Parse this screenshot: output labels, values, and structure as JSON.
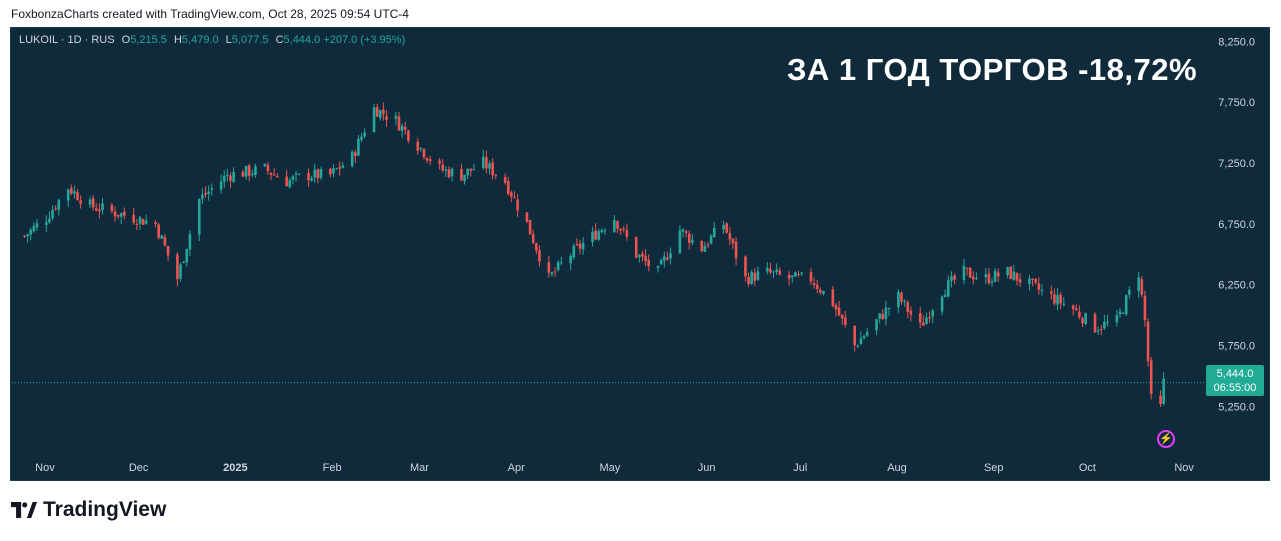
{
  "caption": "FoxbonzaCharts created with TradingView.com, Oct 28, 2025 09:54 UTC-4",
  "legend": {
    "symbol": "LUKOIL · 1D · RUS",
    "o_label": "O",
    "o_value": "5,215.5",
    "h_label": "H",
    "h_value": "5,479.0",
    "l_label": "L",
    "l_value": "5,077.5",
    "c_label": "C",
    "c_value": "5,444.0",
    "change": "+207.0 (+3.95%)"
  },
  "headline": "ЗА 1 ГОД ТОРГОВ -18,72%",
  "price_tag": {
    "price": "5,444.0",
    "timer": "06:55:00"
  },
  "brand": {
    "name": "TradingView"
  },
  "colors": {
    "background": "#0e2a3b",
    "up": "#26a69a",
    "down": "#ef5350",
    "tag": "#22ab94"
  },
  "chart_data": {
    "type": "candlestick",
    "y_ticks": [
      "8,250.0",
      "7,750.0",
      "7,250.0",
      "6,750.0",
      "6,250.0",
      "5,750.0",
      "5,250.0"
    ],
    "y_tick_values": [
      8250,
      7750,
      7250,
      6750,
      6250,
      5750,
      5250
    ],
    "ylim": [
      4850,
      8360
    ],
    "x_ticks": [
      "Nov",
      "Dec",
      "2025",
      "Feb",
      "Mar",
      "Apr",
      "May",
      "Jun",
      "Jul",
      "Aug",
      "Sep",
      "Oct",
      "Nov"
    ],
    "last_price": 5444,
    "series": [
      {
        "d": "2024-10-28",
        "c": 6650
      },
      {
        "d": "2024-11-04",
        "c": 6800
      },
      {
        "d": "2024-11-11",
        "c": 7050
      },
      {
        "d": "2024-11-18",
        "c": 6900
      },
      {
        "d": "2024-11-25",
        "c": 6850
      },
      {
        "d": "2024-12-02",
        "c": 6800
      },
      {
        "d": "2024-12-09",
        "c": 6750
      },
      {
        "d": "2024-12-16",
        "c": 6300
      },
      {
        "d": "2024-12-23",
        "c": 6950
      },
      {
        "d": "2025-01-01",
        "c": 7150
      },
      {
        "d": "2025-01-13",
        "c": 7200
      },
      {
        "d": "2025-01-20",
        "c": 7100
      },
      {
        "d": "2025-01-27",
        "c": 7150
      },
      {
        "d": "2025-02-03",
        "c": 7150
      },
      {
        "d": "2025-02-10",
        "c": 7300
      },
      {
        "d": "2025-02-17",
        "c": 7700
      },
      {
        "d": "2025-02-24",
        "c": 7600
      },
      {
        "d": "2025-03-03",
        "c": 7400
      },
      {
        "d": "2025-03-10",
        "c": 7200
      },
      {
        "d": "2025-03-17",
        "c": 7150
      },
      {
        "d": "2025-03-24",
        "c": 7250
      },
      {
        "d": "2025-03-31",
        "c": 7100
      },
      {
        "d": "2025-04-07",
        "c": 6750
      },
      {
        "d": "2025-04-14",
        "c": 6300
      },
      {
        "d": "2025-04-21",
        "c": 6500
      },
      {
        "d": "2025-04-28",
        "c": 6650
      },
      {
        "d": "2025-05-05",
        "c": 6800
      },
      {
        "d": "2025-05-12",
        "c": 6500
      },
      {
        "d": "2025-05-19",
        "c": 6350
      },
      {
        "d": "2025-05-26",
        "c": 6700
      },
      {
        "d": "2025-06-02",
        "c": 6550
      },
      {
        "d": "2025-06-09",
        "c": 6750
      },
      {
        "d": "2025-06-16",
        "c": 6300
      },
      {
        "d": "2025-06-23",
        "c": 6350
      },
      {
        "d": "2025-06-30",
        "c": 6300
      },
      {
        "d": "2025-07-07",
        "c": 6300
      },
      {
        "d": "2025-07-14",
        "c": 6100
      },
      {
        "d": "2025-07-21",
        "c": 5750
      },
      {
        "d": "2025-07-28",
        "c": 5950
      },
      {
        "d": "2025-08-04",
        "c": 6150
      },
      {
        "d": "2025-08-11",
        "c": 5900
      },
      {
        "d": "2025-08-18",
        "c": 6200
      },
      {
        "d": "2025-08-25",
        "c": 6350
      },
      {
        "d": "2025-09-01",
        "c": 6300
      },
      {
        "d": "2025-09-08",
        "c": 6350
      },
      {
        "d": "2025-09-15",
        "c": 6250
      },
      {
        "d": "2025-09-22",
        "c": 6150
      },
      {
        "d": "2025-09-29",
        "c": 6050
      },
      {
        "d": "2025-10-06",
        "c": 5900
      },
      {
        "d": "2025-10-13",
        "c": 5950
      },
      {
        "d": "2025-10-20",
        "c": 6350
      },
      {
        "d": "2025-10-22",
        "c": 5950
      },
      {
        "d": "2025-10-24",
        "c": 5300
      },
      {
        "d": "2025-10-27",
        "c": 5237
      },
      {
        "d": "2025-10-28",
        "c": 5444
      }
    ]
  }
}
